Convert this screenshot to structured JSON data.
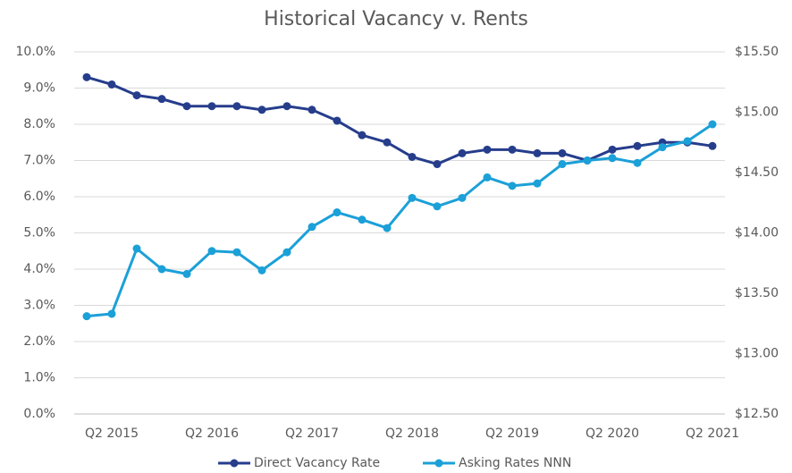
{
  "chart_data": {
    "type": "line",
    "title": "Historical Vacancy v. Rents",
    "categories": [
      null,
      "Q2 2015",
      null,
      null,
      null,
      "Q2 2016",
      null,
      null,
      null,
      "Q2 2017",
      null,
      null,
      null,
      "Q2 2018",
      null,
      null,
      null,
      "Q2 2019",
      null,
      null,
      null,
      "Q2 2020",
      null,
      null,
      null,
      "Q2 2021"
    ],
    "series": [
      {
        "name": "Direct Vacancy Rate",
        "color": "#263d8c",
        "values": [
          9.3,
          9.1,
          8.8,
          8.7,
          8.5,
          8.5,
          8.5,
          8.4,
          8.5,
          8.4,
          8.1,
          7.7,
          7.5,
          7.1,
          6.9,
          7.2,
          7.3,
          7.3,
          7.2,
          7.2,
          7.0,
          7.3,
          7.4,
          7.5,
          7.5,
          7.4
        ]
      },
      {
        "name": "Asking Rates NNN",
        "color": "#1ba0d8",
        "axis": "y2",
        "values": [
          13.31,
          13.33,
          13.87,
          13.7,
          13.66,
          13.85,
          13.84,
          13.69,
          13.84,
          14.05,
          14.17,
          14.11,
          14.04,
          14.29,
          14.22,
          14.29,
          14.46,
          14.39,
          14.41,
          14.57,
          14.6,
          14.62,
          14.58,
          14.71,
          14.76,
          14.9
        ]
      }
    ],
    "ylim": [
      0,
      10
    ],
    "yticks": [
      {
        "value": 0,
        "label": "0.0%"
      },
      {
        "value": 1,
        "label": "1.0%"
      },
      {
        "value": 2,
        "label": "2.0%"
      },
      {
        "value": 3,
        "label": "3.0%"
      },
      {
        "value": 4,
        "label": "4.0%"
      },
      {
        "value": 5,
        "label": "5.0%"
      },
      {
        "value": 6,
        "label": "6.0%"
      },
      {
        "value": 7,
        "label": "7.0%"
      },
      {
        "value": 8,
        "label": "8.0%"
      },
      {
        "value": 9,
        "label": "9.0%"
      },
      {
        "value": 10,
        "label": "10.0%"
      }
    ],
    "y2lim": [
      12.5,
      15.5
    ],
    "y2ticks": [
      {
        "value": 12.5,
        "label": "$12.50"
      },
      {
        "value": 13,
        "label": "$13.00"
      },
      {
        "value": 13.5,
        "label": "$13.50"
      },
      {
        "value": 14,
        "label": "$14.00"
      },
      {
        "value": 14.5,
        "label": "$14.50"
      },
      {
        "value": 15,
        "label": "$15.00"
      },
      {
        "value": 15.5,
        "label": "$15.50"
      }
    ],
    "grid": true,
    "legend": "bottom"
  }
}
